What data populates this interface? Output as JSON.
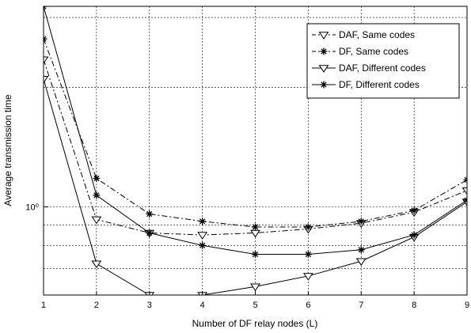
{
  "chart_data": {
    "type": "line",
    "xlabel": "Number of DF relay nodes (L)",
    "ylabel": "Average transmission time",
    "y_scale": "log",
    "xlim": [
      1,
      9
    ],
    "ylim": [
      0.6,
      3.2
    ],
    "grid": true,
    "legend_position": "top-right",
    "x_ticks": [
      "1",
      "2",
      "3",
      "4",
      "5",
      "6",
      "7",
      "8",
      "9"
    ],
    "y_ticks": [
      {
        "value": 1.0,
        "label": "10⁰"
      }
    ],
    "x": [
      1,
      2,
      3,
      4,
      5,
      6,
      7,
      8,
      9
    ],
    "series": [
      {
        "name": "DAF, Same codes",
        "line": "dashdot",
        "marker": "triangle-down",
        "values": [
          2.35,
          0.93,
          0.86,
          0.85,
          0.86,
          0.88,
          0.91,
          0.97,
          1.1
        ]
      },
      {
        "name": "DF, Same codes",
        "line": "dashdot",
        "marker": "star",
        "values": [
          2.65,
          1.18,
          0.96,
          0.92,
          0.89,
          0.89,
          0.92,
          0.98,
          1.17
        ]
      },
      {
        "name": "DAF, Different codes",
        "line": "solid",
        "marker": "triangle-down",
        "values": [
          2.1,
          0.72,
          0.6,
          0.6,
          0.63,
          0.67,
          0.73,
          0.84,
          1.03
        ]
      },
      {
        "name": "DF, Different codes",
        "line": "solid",
        "marker": "star",
        "values": [
          3.2,
          1.07,
          0.86,
          0.8,
          0.76,
          0.76,
          0.78,
          0.85,
          1.04
        ]
      }
    ]
  },
  "colors": {
    "line": "#000000",
    "grid": "#000000",
    "background": "#ffffff"
  }
}
